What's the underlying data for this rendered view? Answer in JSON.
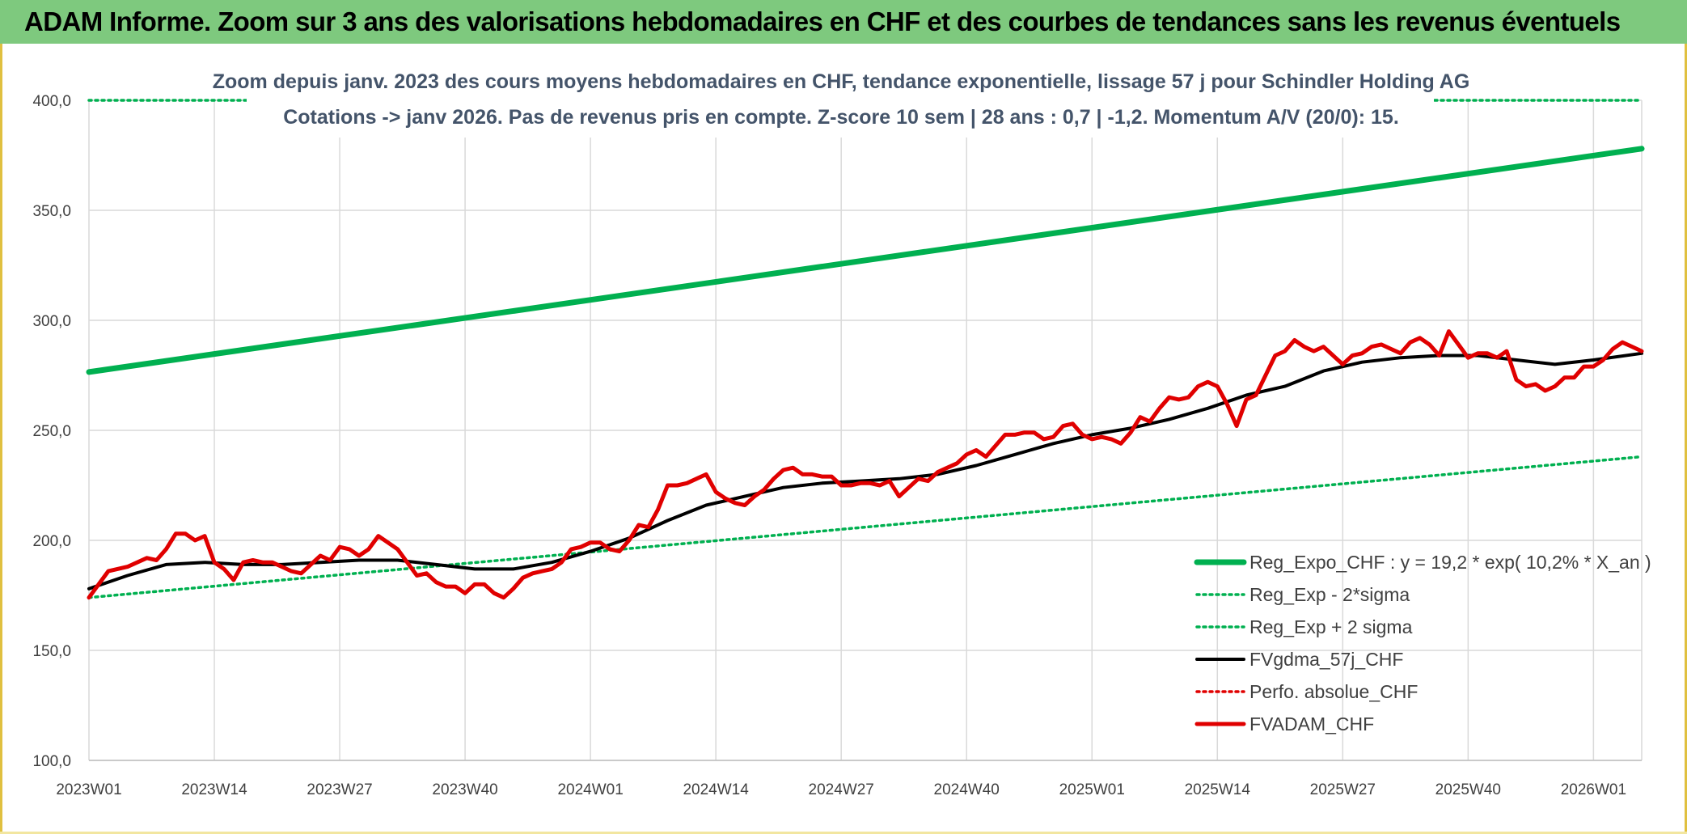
{
  "header": {
    "title": "ADAM Informe. Zoom sur 3 ans des valorisations hebdomadaires en CHF et des courbes de tendances sans les revenus éventuels"
  },
  "colors": {
    "banner": "#7ec97e",
    "reg_expo": "#00b050",
    "fvgdma": "#000000",
    "perfo": "#e00000",
    "fvadam": "#e00000",
    "subtitle": "#44546a",
    "grid": "#d9d9d9"
  },
  "chart_data": {
    "type": "line",
    "title_lines": [
      "Zoom depuis janv. 2023 des cours moyens hebdomadaires en CHF, tendance exponentielle, lissage 57 j pour Schindler Holding AG",
      "Cotations -> janv 2026. Pas de revenus pris en compte. Z-score 10 sem | 28 ans : 0,7 | -1,2. Momentum A/V (20/0): 15."
    ],
    "xlabel": "",
    "ylabel": "",
    "ylim": [
      100,
      400
    ],
    "y_ticks": [
      "100,0",
      "150,0",
      "200,0",
      "250,0",
      "300,0",
      "350,0",
      "400,0"
    ],
    "x_ticks": [
      "2023W01",
      "2023W14",
      "2023W27",
      "2023W40",
      "2024W01",
      "2024W14",
      "2024W27",
      "2024W40",
      "2025W01",
      "2025W14",
      "2025W27",
      "2025W40",
      "2026W01"
    ],
    "x_range_weeks": [
      0,
      161
    ],
    "grid": true,
    "legend_position": "bottom-right",
    "series": [
      {
        "name": "Reg_Expo_CHF : y = 19,2 * exp( 10,2% *  X_an )",
        "style": "solid-thick",
        "color": "#00b050",
        "x": [
          0,
          161
        ],
        "values": [
          276.5,
          378
        ]
      },
      {
        "name": "Reg_Exp - 2*sigma",
        "style": "dotted",
        "color": "#00b050",
        "x": [
          0,
          161
        ],
        "values": [
          174,
          238
        ]
      },
      {
        "name": "Reg_Exp + 2 sigma",
        "style": "dotted",
        "color": "#00b050",
        "x": [
          0,
          161
        ],
        "values": [
          400,
          400
        ]
      },
      {
        "name": "FVgdma_57j_CHF",
        "style": "solid",
        "color": "#000000",
        "x": [
          0,
          4,
          8,
          12,
          16,
          20,
          24,
          28,
          32,
          36,
          40,
          44,
          48,
          52,
          56,
          60,
          64,
          68,
          72,
          76,
          80,
          84,
          88,
          92,
          96,
          100,
          104,
          108,
          112,
          116,
          120,
          124,
          128,
          132,
          136,
          140,
          144,
          148,
          152,
          156,
          161
        ],
        "values": [
          178,
          184,
          189,
          190,
          189,
          189,
          190,
          191,
          191,
          189,
          187,
          187,
          190,
          195,
          201,
          209,
          216,
          220,
          224,
          226,
          227,
          228,
          230,
          234,
          239,
          244,
          248,
          251,
          255,
          260,
          266,
          270,
          277,
          281,
          283,
          284,
          284,
          282,
          280,
          282,
          285
        ]
      },
      {
        "name": "Perfo. absolue_CHF",
        "style": "dotted",
        "color": "#e00000",
        "x": [],
        "values": []
      },
      {
        "name": "FVADAM_CHF",
        "style": "solid-thick",
        "color": "#e00000",
        "x": [
          0,
          2,
          4,
          6,
          7,
          8,
          9,
          10,
          11,
          12,
          13,
          14,
          15,
          16,
          17,
          18,
          19,
          20,
          21,
          22,
          23,
          24,
          25,
          26,
          27,
          28,
          29,
          30,
          31,
          32,
          33,
          34,
          35,
          36,
          37,
          38,
          39,
          40,
          41,
          42,
          43,
          44,
          45,
          46,
          47,
          48,
          49,
          50,
          51,
          52,
          53,
          54,
          55,
          56,
          57,
          58,
          59,
          60,
          61,
          62,
          63,
          64,
          65,
          66,
          67,
          68,
          69,
          70,
          71,
          72,
          73,
          74,
          75,
          76,
          77,
          78,
          79,
          80,
          81,
          82,
          83,
          84,
          85,
          86,
          87,
          88,
          89,
          90,
          91,
          92,
          93,
          94,
          95,
          96,
          97,
          98,
          99,
          100,
          101,
          102,
          103,
          104,
          105,
          106,
          107,
          108,
          109,
          110,
          111,
          112,
          113,
          114,
          115,
          116,
          117,
          118,
          119,
          120,
          121,
          122,
          123,
          124,
          125,
          126,
          127,
          128,
          129,
          130,
          131,
          132,
          133,
          134,
          135,
          136,
          137,
          138,
          139,
          140,
          141,
          142,
          143,
          144,
          145,
          146,
          147,
          148,
          149,
          150,
          151,
          152,
          153,
          154,
          155,
          156,
          157,
          158,
          159,
          160,
          161
        ],
        "values": [
          174,
          186,
          188,
          192,
          191,
          196,
          203,
          203,
          200,
          202,
          190,
          187,
          182,
          190,
          191,
          190,
          190,
          188,
          186,
          185,
          189,
          193,
          191,
          197,
          196,
          193,
          196,
          202,
          199,
          196,
          190,
          184,
          185,
          181,
          179,
          179,
          176,
          180,
          180,
          176,
          174,
          178,
          183,
          185,
          186,
          187,
          190,
          196,
          197,
          199,
          199,
          196,
          195,
          200,
          207,
          206,
          214,
          225,
          225,
          226,
          228,
          230,
          222,
          219,
          217,
          216,
          220,
          223,
          228,
          232,
          233,
          230,
          230,
          229,
          229,
          225,
          225,
          226,
          226,
          225,
          227,
          220,
          224,
          228,
          227,
          231,
          233,
          235,
          239,
          241,
          238,
          243,
          248,
          248,
          249,
          249,
          246,
          247,
          252,
          253,
          248,
          246,
          247,
          246,
          244,
          249,
          256,
          254,
          260,
          265,
          264,
          265,
          270,
          272,
          270,
          262,
          252,
          264,
          266,
          275,
          284,
          286,
          291,
          288,
          286,
          288,
          284,
          280,
          284,
          285,
          288,
          289,
          287,
          285,
          290,
          292,
          289,
          284,
          295,
          289,
          283,
          285,
          285,
          283,
          286,
          273,
          270,
          271,
          268,
          270,
          274,
          274,
          279,
          279,
          282,
          287,
          290,
          288,
          286
        ]
      }
    ]
  }
}
